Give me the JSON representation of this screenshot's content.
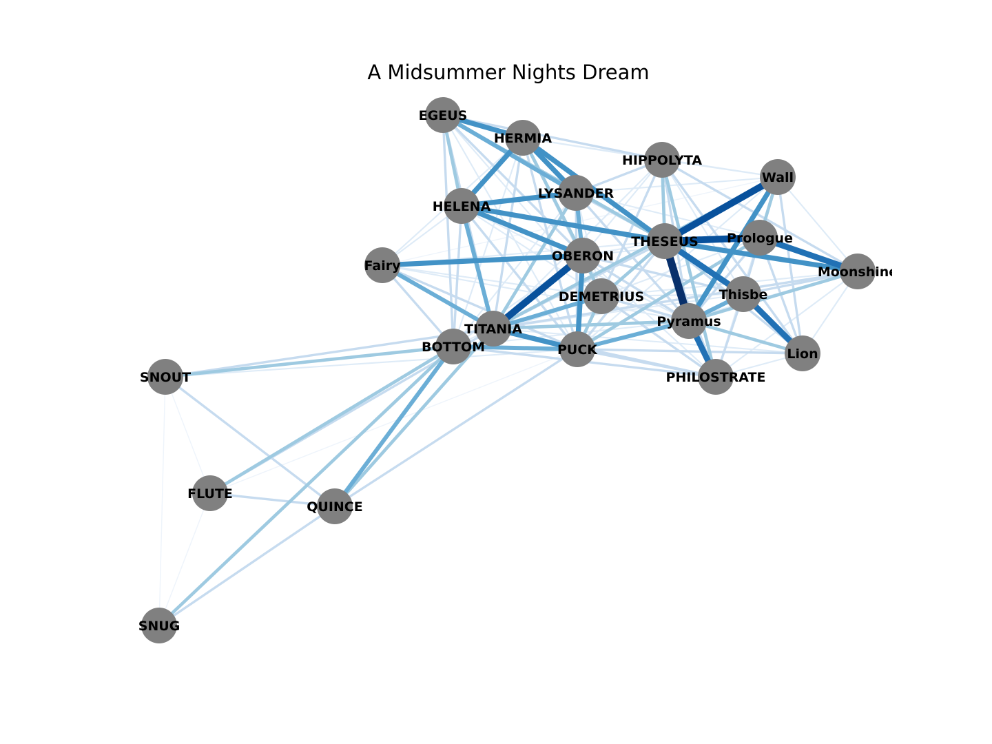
{
  "title": "A Midsummer Nights Dream",
  "colors": {
    "node_fill": "#808080",
    "edge_scale": [
      "#deebf7",
      "#c6dbef",
      "#9ecae1",
      "#6baed6",
      "#4292c6",
      "#2171b5",
      "#08519c",
      "#08306b"
    ],
    "label_color": "#000000"
  },
  "graph": {
    "nodes": [
      {
        "id": "EGEUS",
        "label": "EGEUS"
      },
      {
        "id": "HERMIA",
        "label": "HERMIA"
      },
      {
        "id": "HIPPOLYTA",
        "label": "HIPPOLYTA"
      },
      {
        "id": "Wall",
        "label": "Wall"
      },
      {
        "id": "LYSANDER",
        "label": "LYSANDER"
      },
      {
        "id": "HELENA",
        "label": "HELENA"
      },
      {
        "id": "THESEUS",
        "label": "THESEUS"
      },
      {
        "id": "Prologue",
        "label": "Prologue"
      },
      {
        "id": "Fairy",
        "label": "Fairy"
      },
      {
        "id": "OBERON",
        "label": "OBERON"
      },
      {
        "id": "Moonshine",
        "label": "Moonshine"
      },
      {
        "id": "DEMETRIUS",
        "label": "DEMETRIUS"
      },
      {
        "id": "Thisbe",
        "label": "Thisbe"
      },
      {
        "id": "TITANIA",
        "label": "TITANIA"
      },
      {
        "id": "Pyramus",
        "label": "Pyramus"
      },
      {
        "id": "BOTTOM",
        "label": "BOTTOM"
      },
      {
        "id": "PUCK",
        "label": "PUCK"
      },
      {
        "id": "Lion",
        "label": "Lion"
      },
      {
        "id": "SNOUT",
        "label": "SNOUT"
      },
      {
        "id": "PHILOSTRATE",
        "label": "PHILOSTRATE"
      },
      {
        "id": "FLUTE",
        "label": "FLUTE"
      },
      {
        "id": "QUINCE",
        "label": "QUINCE"
      },
      {
        "id": "SNUG",
        "label": "SNUG"
      }
    ],
    "edges": [
      {
        "source": "THESEUS",
        "target": "Pyramus",
        "weight": 8
      },
      {
        "source": "OBERON",
        "target": "TITANIA",
        "weight": 7
      },
      {
        "source": "THESEUS",
        "target": "Wall",
        "weight": 7
      },
      {
        "source": "THESEUS",
        "target": "Prologue",
        "weight": 7
      },
      {
        "source": "Pyramus",
        "target": "PHILOSTRATE",
        "weight": 6
      },
      {
        "source": "THESEUS",
        "target": "Thisbe",
        "weight": 6
      },
      {
        "source": "Prologue",
        "target": "Moonshine",
        "weight": 6
      },
      {
        "source": "Thisbe",
        "target": "Lion",
        "weight": 6
      },
      {
        "source": "HERMIA",
        "target": "THESEUS",
        "weight": 5
      },
      {
        "source": "Wall",
        "target": "Pyramus",
        "weight": 5
      },
      {
        "source": "THESEUS",
        "target": "Moonshine",
        "weight": 5
      },
      {
        "source": "HERMIA",
        "target": "LYSANDER",
        "weight": 5
      },
      {
        "source": "EGEUS",
        "target": "HERMIA",
        "weight": 5
      },
      {
        "source": "HELENA",
        "target": "LYSANDER",
        "weight": 5
      },
      {
        "source": "HELENA",
        "target": "OBERON",
        "weight": 5
      },
      {
        "source": "HERMIA",
        "target": "HELENA",
        "weight": 5
      },
      {
        "source": "HELENA",
        "target": "THESEUS",
        "weight": 5
      },
      {
        "source": "Fairy",
        "target": "OBERON",
        "weight": 5
      },
      {
        "source": "OBERON",
        "target": "PUCK",
        "weight": 5
      },
      {
        "source": "TITANIA",
        "target": "PUCK",
        "weight": 5
      },
      {
        "source": "BOTTOM",
        "target": "QUINCE",
        "weight": 4
      },
      {
        "source": "HELENA",
        "target": "TITANIA",
        "weight": 4
      },
      {
        "source": "Fairy",
        "target": "TITANIA",
        "weight": 4
      },
      {
        "source": "Pyramus",
        "target": "PUCK",
        "weight": 4
      },
      {
        "source": "BOTTOM",
        "target": "PUCK",
        "weight": 4
      },
      {
        "source": "DEMETRIUS",
        "target": "TITANIA",
        "weight": 4
      },
      {
        "source": "Pyramus",
        "target": "Thisbe",
        "weight": 4
      },
      {
        "source": "EGEUS",
        "target": "LYSANDER",
        "weight": 4
      },
      {
        "source": "LYSANDER",
        "target": "OBERON",
        "weight": 4
      },
      {
        "source": "HIPPOLYTA",
        "target": "PHILOSTRATE",
        "weight": 3
      },
      {
        "source": "HIPPOLYTA",
        "target": "THESEUS",
        "weight": 3
      },
      {
        "source": "Wall",
        "target": "Prologue",
        "weight": 3
      },
      {
        "source": "Wall",
        "target": "TITANIA",
        "weight": 3
      },
      {
        "source": "Prologue",
        "target": "PUCK",
        "weight": 3
      },
      {
        "source": "DEMETRIUS",
        "target": "THESEUS",
        "weight": 3
      },
      {
        "source": "DEMETRIUS",
        "target": "PUCK",
        "weight": 3
      },
      {
        "source": "LYSANDER",
        "target": "TITANIA",
        "weight": 3
      },
      {
        "source": "HERMIA",
        "target": "OBERON",
        "weight": 3
      },
      {
        "source": "Moonshine",
        "target": "Pyramus",
        "weight": 3
      },
      {
        "source": "Lion",
        "target": "Pyramus",
        "weight": 3
      },
      {
        "source": "TITANIA",
        "target": "Pyramus",
        "weight": 3
      },
      {
        "source": "OBERON",
        "target": "DEMETRIUS",
        "weight": 3
      },
      {
        "source": "BOTTOM",
        "target": "FLUTE",
        "weight": 3
      },
      {
        "source": "BOTTOM",
        "target": "SNUG",
        "weight": 3
      },
      {
        "source": "BOTTOM",
        "target": "SNOUT",
        "weight": 3
      },
      {
        "source": "TITANIA",
        "target": "QUINCE",
        "weight": 3
      },
      {
        "source": "EGEUS",
        "target": "HELENA",
        "weight": 3
      },
      {
        "source": "EGEUS",
        "target": "THESEUS",
        "weight": 3
      },
      {
        "source": "HIPPOLYTA",
        "target": "Moonshine",
        "weight": 2
      },
      {
        "source": "HIPPOLYTA",
        "target": "Lion",
        "weight": 2
      },
      {
        "source": "HIPPOLYTA",
        "target": "Pyramus",
        "weight": 2
      },
      {
        "source": "HIPPOLYTA",
        "target": "PUCK",
        "weight": 2
      },
      {
        "source": "Wall",
        "target": "Lion",
        "weight": 2
      },
      {
        "source": "Wall",
        "target": "Thisbe",
        "weight": 2
      },
      {
        "source": "Prologue",
        "target": "Thisbe",
        "weight": 2
      },
      {
        "source": "Prologue",
        "target": "Pyramus",
        "weight": 2
      },
      {
        "source": "Prologue",
        "target": "Lion",
        "weight": 2
      },
      {
        "source": "Moonshine",
        "target": "Thisbe",
        "weight": 2
      },
      {
        "source": "Moonshine",
        "target": "TITANIA",
        "weight": 2
      },
      {
        "source": "Fairy",
        "target": "PUCK",
        "weight": 2
      },
      {
        "source": "Fairy",
        "target": "BOTTOM",
        "weight": 2
      },
      {
        "source": "HELENA",
        "target": "PUCK",
        "weight": 2
      },
      {
        "source": "HELENA",
        "target": "BOTTOM",
        "weight": 2
      },
      {
        "source": "HERMIA",
        "target": "PUCK",
        "weight": 2
      },
      {
        "source": "HERMIA",
        "target": "TITANIA",
        "weight": 2
      },
      {
        "source": "HERMIA",
        "target": "DEMETRIUS",
        "weight": 2
      },
      {
        "source": "LYSANDER",
        "target": "PUCK",
        "weight": 2
      },
      {
        "source": "LYSANDER",
        "target": "THESEUS",
        "weight": 2
      },
      {
        "source": "LYSANDER",
        "target": "Pyramus",
        "weight": 2
      },
      {
        "source": "THESEUS",
        "target": "TITANIA",
        "weight": 2
      },
      {
        "source": "THESEUS",
        "target": "PUCK",
        "weight": 2
      },
      {
        "source": "THESEUS",
        "target": "Lion",
        "weight": 2
      },
      {
        "source": "THESEUS",
        "target": "PHILOSTRATE",
        "weight": 2
      },
      {
        "source": "OBERON",
        "target": "Pyramus",
        "weight": 2
      },
      {
        "source": "OBERON",
        "target": "Thisbe",
        "weight": 2
      },
      {
        "source": "DEMETRIUS",
        "target": "Pyramus",
        "weight": 2
      },
      {
        "source": "DEMETRIUS",
        "target": "PHILOSTRATE",
        "weight": 2
      },
      {
        "source": "DEMETRIUS",
        "target": "Lion",
        "weight": 2
      },
      {
        "source": "EGEUS",
        "target": "OBERON",
        "weight": 2
      },
      {
        "source": "EGEUS",
        "target": "TITANIA",
        "weight": 2
      },
      {
        "source": "EGEUS",
        "target": "BOTTOM",
        "weight": 2
      },
      {
        "source": "EGEUS",
        "target": "HIPPOLYTA",
        "weight": 2
      },
      {
        "source": "TITANIA",
        "target": "SNOUT",
        "weight": 2
      },
      {
        "source": "TITANIA",
        "target": "FLUTE",
        "weight": 2
      },
      {
        "source": "TITANIA",
        "target": "PHILOSTRATE",
        "weight": 2
      },
      {
        "source": "BOTTOM",
        "target": "PHILOSTRATE",
        "weight": 2
      },
      {
        "source": "PUCK",
        "target": "QUINCE",
        "weight": 2
      },
      {
        "source": "PUCK",
        "target": "Lion",
        "weight": 2
      },
      {
        "source": "PUCK",
        "target": "PHILOSTRATE",
        "weight": 2
      },
      {
        "source": "SNOUT",
        "target": "QUINCE",
        "weight": 2
      },
      {
        "source": "FLUTE",
        "target": "QUINCE",
        "weight": 2
      },
      {
        "source": "QUINCE",
        "target": "SNUG",
        "weight": 2
      },
      {
        "source": "Thisbe",
        "target": "PHILOSTRATE",
        "weight": 2
      },
      {
        "source": "HIPPOLYTA",
        "target": "LYSANDER",
        "weight": 2
      },
      {
        "source": "HIPPOLYTA",
        "target": "Wall",
        "weight": 1
      },
      {
        "source": "HIPPOLYTA",
        "target": "Thisbe",
        "weight": 1
      },
      {
        "source": "HIPPOLYTA",
        "target": "OBERON",
        "weight": 1
      },
      {
        "source": "HIPPOLYTA",
        "target": "TITANIA",
        "weight": 1
      },
      {
        "source": "Wall",
        "target": "Moonshine",
        "weight": 1
      },
      {
        "source": "Wall",
        "target": "PHILOSTRATE",
        "weight": 1
      },
      {
        "source": "Wall",
        "target": "PUCK",
        "weight": 1
      },
      {
        "source": "Wall",
        "target": "LYSANDER",
        "weight": 1
      },
      {
        "source": "Moonshine",
        "target": "Lion",
        "weight": 1
      },
      {
        "source": "Moonshine",
        "target": "PHILOSTRATE",
        "weight": 1
      },
      {
        "source": "Moonshine",
        "target": "PUCK",
        "weight": 1
      },
      {
        "source": "Fairy",
        "target": "HELENA",
        "weight": 1
      },
      {
        "source": "Fairy",
        "target": "HERMIA",
        "weight": 1
      },
      {
        "source": "Fairy",
        "target": "DEMETRIUS",
        "weight": 1
      },
      {
        "source": "Fairy",
        "target": "THESEUS",
        "weight": 1
      },
      {
        "source": "Fairy",
        "target": "Pyramus",
        "weight": 1
      },
      {
        "source": "EGEUS",
        "target": "DEMETRIUS",
        "weight": 1
      },
      {
        "source": "EGEUS",
        "target": "PUCK",
        "weight": 1
      },
      {
        "source": "HERMIA",
        "target": "HIPPOLYTA",
        "weight": 1
      },
      {
        "source": "HERMIA",
        "target": "Wall",
        "weight": 1
      },
      {
        "source": "HERMIA",
        "target": "BOTTOM",
        "weight": 1
      },
      {
        "source": "LYSANDER",
        "target": "DEMETRIUS",
        "weight": 1
      },
      {
        "source": "LYSANDER",
        "target": "BOTTOM",
        "weight": 1
      },
      {
        "source": "LYSANDER",
        "target": "Prologue",
        "weight": 1
      },
      {
        "source": "HELENA",
        "target": "DEMETRIUS",
        "weight": 1
      },
      {
        "source": "HELENA",
        "target": "Pyramus",
        "weight": 1
      },
      {
        "source": "OBERON",
        "target": "BOTTOM",
        "weight": 1
      },
      {
        "source": "OBERON",
        "target": "THESEUS",
        "weight": 1
      },
      {
        "source": "OBERON",
        "target": "Prologue",
        "weight": 1
      },
      {
        "source": "OBERON",
        "target": "PHILOSTRATE",
        "weight": 1
      },
      {
        "source": "DEMETRIUS",
        "target": "Thisbe",
        "weight": 1
      },
      {
        "source": "DEMETRIUS",
        "target": "BOTTOM",
        "weight": 1
      },
      {
        "source": "DEMETRIUS",
        "target": "Prologue",
        "weight": 1
      },
      {
        "source": "TITANIA",
        "target": "Thisbe",
        "weight": 1
      },
      {
        "source": "TITANIA",
        "target": "Lion",
        "weight": 1
      },
      {
        "source": "TITANIA",
        "target": "BOTTOM",
        "weight": 1
      },
      {
        "source": "BOTTOM",
        "target": "Pyramus",
        "weight": 1
      },
      {
        "source": "BOTTOM",
        "target": "Lion",
        "weight": 1
      },
      {
        "source": "SNOUT",
        "target": "PUCK",
        "weight": 1
      },
      {
        "source": "SNOUT",
        "target": "FLUTE",
        "weight": 0.5
      },
      {
        "source": "SNOUT",
        "target": "SNUG",
        "weight": 0.5
      },
      {
        "source": "FLUTE",
        "target": "SNUG",
        "weight": 0.5
      },
      {
        "source": "FLUTE",
        "target": "PUCK",
        "weight": 0.5
      },
      {
        "source": "Lion",
        "target": "PHILOSTRATE",
        "weight": 1
      },
      {
        "source": "Prologue",
        "target": "PHILOSTRATE",
        "weight": 1
      },
      {
        "source": "Wall",
        "target": "Fairy",
        "weight": 0.5
      },
      {
        "source": "Moonshine",
        "target": "DEMETRIUS",
        "weight": 1
      }
    ]
  }
}
